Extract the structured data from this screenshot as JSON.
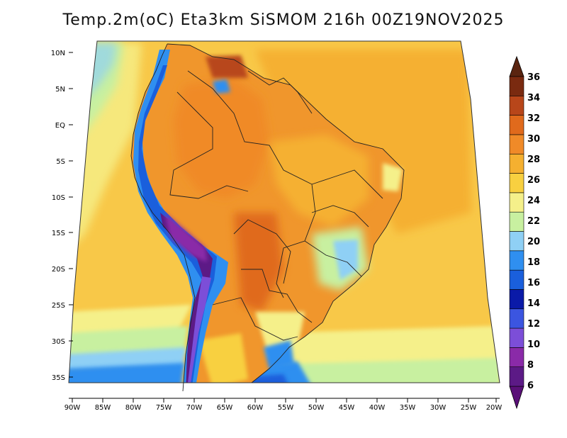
{
  "title": "Temp.2m(oC) Eta3km SiSMOM 216h 00Z19NOV2025",
  "map": {
    "variable": "2 m air temperature",
    "units": "oC",
    "region": "South America",
    "lat_ticks": [
      "10N",
      "5N",
      "EQ",
      "5S",
      "10S",
      "15S",
      "20S",
      "25S",
      "30S",
      "35S"
    ],
    "lon_ticks": [
      "90W",
      "85W",
      "80W",
      "75W",
      "70W",
      "65W",
      "60W",
      "55W",
      "50W",
      "45W",
      "40W",
      "35W",
      "30W",
      "25W",
      "20W"
    ]
  },
  "colorbar": {
    "labels": [
      "6",
      "8",
      "10",
      "12",
      "14",
      "16",
      "18",
      "20",
      "22",
      "24",
      "26",
      "28",
      "30",
      "32",
      "34",
      "36"
    ],
    "colors": [
      "#5c1a86",
      "#8a2aa8",
      "#7c4ed8",
      "#3b55e0",
      "#0a1aa8",
      "#1a5fdc",
      "#2f8ff0",
      "#8fd0f5",
      "#c8f0a0",
      "#f5f08a",
      "#f8d040",
      "#f5b030",
      "#f08a28",
      "#e06a1c",
      "#b8461a",
      "#7a2a10"
    ],
    "min_arrow_color": "#5a1078",
    "max_arrow_color": "#5a2410"
  }
}
